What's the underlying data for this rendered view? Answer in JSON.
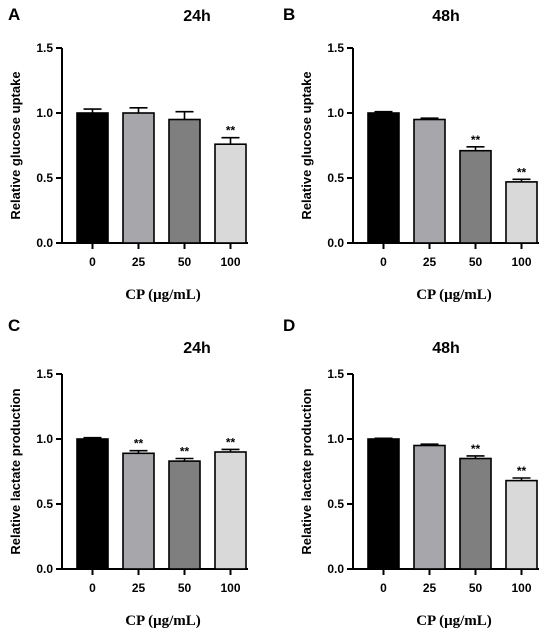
{
  "chart_data": [
    {
      "type": "bar",
      "panel_label": "A",
      "title": "24h",
      "xlabel": "CP (μg/mL)",
      "ylabel": "Relative glucose uptake",
      "categories": [
        "0",
        "25",
        "50",
        "100"
      ],
      "values": [
        1.0,
        1.0,
        0.95,
        0.76
      ],
      "errors": [
        0.03,
        0.04,
        0.06,
        0.05
      ],
      "significance": [
        "",
        "",
        "",
        "**"
      ],
      "ylim": [
        0,
        1.5
      ],
      "yticks": [
        "0.0",
        "0.5",
        "1.0",
        "1.5"
      ],
      "bar_colors": [
        "#000000",
        "#a6a6ab",
        "#7f7f7f",
        "#d9d9d9"
      ]
    },
    {
      "type": "bar",
      "panel_label": "B",
      "title": "48h",
      "xlabel": "CP (μg/mL)",
      "ylabel": "Relative glucose uptake",
      "categories": [
        "0",
        "25",
        "50",
        "100"
      ],
      "values": [
        1.0,
        0.95,
        0.71,
        0.47
      ],
      "errors": [
        0.01,
        0.01,
        0.03,
        0.02
      ],
      "significance": [
        "",
        "",
        "**",
        "**"
      ],
      "ylim": [
        0,
        1.5
      ],
      "yticks": [
        "0.0",
        "0.5",
        "1.0",
        "1.5"
      ],
      "bar_colors": [
        "#000000",
        "#a6a6ab",
        "#7f7f7f",
        "#d9d9d9"
      ]
    },
    {
      "type": "bar",
      "panel_label": "C",
      "title": "24h",
      "xlabel": "CP (μg/mL)",
      "ylabel": "Relative lactate production",
      "categories": [
        "0",
        "25",
        "50",
        "100"
      ],
      "values": [
        1.0,
        0.89,
        0.83,
        0.9
      ],
      "errors": [
        0.01,
        0.02,
        0.02,
        0.02
      ],
      "significance": [
        "",
        "**",
        "**",
        "**"
      ],
      "ylim": [
        0,
        1.5
      ],
      "yticks": [
        "0.0",
        "0.5",
        "1.0",
        "1.5"
      ],
      "bar_colors": [
        "#000000",
        "#a6a6ab",
        "#7f7f7f",
        "#d9d9d9"
      ]
    },
    {
      "type": "bar",
      "panel_label": "D",
      "title": "48h",
      "xlabel": "CP (μg/mL)",
      "ylabel": "Relative lactate production",
      "categories": [
        "0",
        "25",
        "50",
        "100"
      ],
      "values": [
        1.0,
        0.95,
        0.85,
        0.68
      ],
      "errors": [
        0.005,
        0.01,
        0.02,
        0.02
      ],
      "significance": [
        "",
        "",
        "**",
        "**"
      ],
      "ylim": [
        0,
        1.5
      ],
      "yticks": [
        "0.0",
        "0.5",
        "1.0",
        "1.5"
      ],
      "bar_colors": [
        "#000000",
        "#a6a6ab",
        "#7f7f7f",
        "#d9d9d9"
      ]
    }
  ]
}
